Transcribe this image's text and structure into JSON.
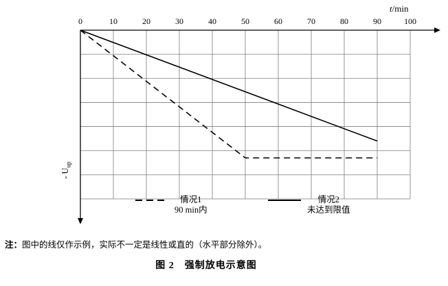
{
  "figure": {
    "note_prefix": "注：",
    "note_text": "图中的线仅作示例，实际不一定是线性或直的（水平部分除外）。",
    "caption": "图 2　强制放电示意图"
  },
  "chart_data": {
    "type": "line",
    "title": "强制放电示意图",
    "x_axis": {
      "label": "t/min",
      "label_var": "t",
      "label_unit": "/min",
      "ticks": [
        0,
        10,
        20,
        30,
        40,
        50,
        60,
        70,
        80,
        90,
        100
      ],
      "range": [
        0,
        100
      ]
    },
    "y_axis": {
      "label_main": "- U",
      "label_sub": "up",
      "direction": "down",
      "numeric_scale_shown": false,
      "gridline_rows": 7,
      "y_units": "gridline rows below the t axis (no numeric scale shown)"
    },
    "grid": true,
    "legend_position": "bottom",
    "series": [
      {
        "name": "情况1",
        "detail": "90 min内",
        "style": "dashed",
        "points": [
          [
            0,
            0
          ],
          [
            50,
            5.3
          ],
          [
            90,
            5.3
          ]
        ]
      },
      {
        "name": "情况2",
        "detail": "未达到限值",
        "style": "solid",
        "points": [
          [
            0,
            0
          ],
          [
            90,
            4.6
          ]
        ]
      }
    ]
  }
}
